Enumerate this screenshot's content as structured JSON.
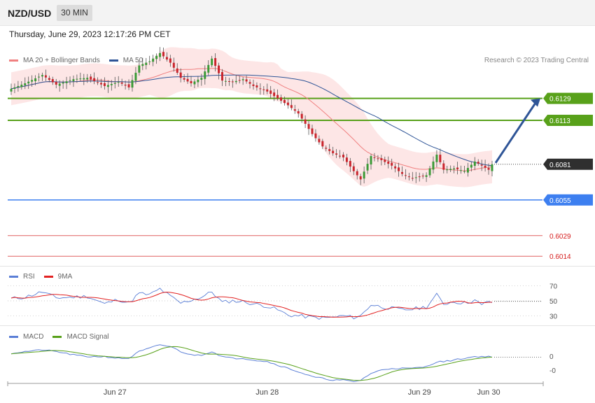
{
  "header": {
    "symbol": "NZD/USD",
    "timeframe": "30 MIN"
  },
  "datetime": "Thursday, June 29, 2023 12:17:26 PM CET",
  "copyright": "Research © 2023 Trading Central",
  "colors": {
    "up": "#3a9a36",
    "down": "#c9242c",
    "ma20": "#f08080",
    "band": "#fde2e2",
    "ma50": "#2f5597",
    "resistance": "#58a11a",
    "pivot": "#3d7ff0",
    "support": "#e06060",
    "arrow": "#2f5597",
    "rsi": "#5b7fd6",
    "rsi_ma": "#e22222",
    "macd": "#5b7fd6",
    "signal": "#58a11a"
  },
  "legends": {
    "price": [
      {
        "label": "MA 20 + Bollinger Bands",
        "color": "#f08080"
      },
      {
        "label": "MA 50",
        "color": "#2f5597"
      }
    ],
    "rsi": [
      {
        "label": "RSI",
        "color": "#5b7fd6"
      },
      {
        "label": "9MA",
        "color": "#e22222"
      }
    ],
    "macd": [
      {
        "label": "MACD",
        "color": "#5b7fd6"
      },
      {
        "label": "MACD Signal",
        "color": "#58a11a"
      }
    ]
  },
  "chart_data": [
    {
      "type": "candlestick",
      "name": "price",
      "ylim": [
        0.6008,
        0.6165
      ],
      "levels": [
        {
          "value": 0.6129,
          "label": "0.6129",
          "kind": "resistance"
        },
        {
          "value": 0.6113,
          "label": "0.6113",
          "kind": "resistance"
        },
        {
          "value": 0.6081,
          "label": "0.6081",
          "kind": "last"
        },
        {
          "value": 0.6055,
          "label": "0.6055",
          "kind": "pivot"
        },
        {
          "value": 0.6029,
          "label": "0.6029",
          "kind": "support"
        },
        {
          "value": 0.6014,
          "label": "0.6014",
          "kind": "support"
        }
      ],
      "x_ticks": [
        {
          "index": 30,
          "label": "Jun 27"
        },
        {
          "index": 74,
          "label": "Jun 28"
        },
        {
          "index": 118,
          "label": "Jun 29"
        },
        {
          "index": 138,
          "label": "Jun 30"
        }
      ],
      "arrow": {
        "from": [
          0.6081
        ],
        "to": [
          0.6129
        ]
      },
      "close_anchors": [
        [
          0,
          0.6136
        ],
        [
          4,
          0.614
        ],
        [
          9,
          0.6146
        ],
        [
          13,
          0.6139
        ],
        [
          18,
          0.6143
        ],
        [
          22,
          0.6144
        ],
        [
          27,
          0.6138
        ],
        [
          31,
          0.6141
        ],
        [
          34,
          0.6137
        ],
        [
          37,
          0.6153
        ],
        [
          40,
          0.6156
        ],
        [
          43,
          0.6162
        ],
        [
          46,
          0.6155
        ],
        [
          49,
          0.6144
        ],
        [
          52,
          0.614
        ],
        [
          55,
          0.6144
        ],
        [
          58,
          0.6158
        ],
        [
          61,
          0.6142
        ],
        [
          64,
          0.6141
        ],
        [
          67,
          0.6143
        ],
        [
          70,
          0.6138
        ],
        [
          74,
          0.6134
        ],
        [
          77,
          0.6129
        ],
        [
          80,
          0.6124
        ],
        [
          83,
          0.6118
        ],
        [
          87,
          0.6103
        ],
        [
          90,
          0.6094
        ],
        [
          93,
          0.6089
        ],
        [
          96,
          0.6086
        ],
        [
          99,
          0.6076
        ],
        [
          101,
          0.607
        ],
        [
          104,
          0.6087
        ],
        [
          107,
          0.6084
        ],
        [
          110,
          0.608
        ],
        [
          113,
          0.6074
        ],
        [
          116,
          0.6071
        ],
        [
          120,
          0.6073
        ],
        [
          123,
          0.6088
        ],
        [
          125,
          0.6077
        ],
        [
          128,
          0.6078
        ],
        [
          131,
          0.6076
        ],
        [
          134,
          0.6083
        ],
        [
          136,
          0.608
        ],
        [
          138,
          0.6077
        ],
        [
          139,
          0.6081
        ]
      ]
    },
    {
      "type": "line",
      "name": "RSI",
      "ylim": [
        22,
        78
      ],
      "gridlines": [
        70,
        50,
        30
      ],
      "y_ticks": [
        "70",
        "50",
        "30"
      ],
      "anchors": [
        [
          0,
          53
        ],
        [
          4,
          55
        ],
        [
          9,
          62
        ],
        [
          13,
          54
        ],
        [
          18,
          55
        ],
        [
          22,
          56
        ],
        [
          27,
          46
        ],
        [
          31,
          52
        ],
        [
          34,
          47
        ],
        [
          37,
          60
        ],
        [
          40,
          58
        ],
        [
          43,
          66
        ],
        [
          46,
          56
        ],
        [
          49,
          47
        ],
        [
          52,
          51
        ],
        [
          55,
          55
        ],
        [
          58,
          62
        ],
        [
          61,
          48
        ],
        [
          64,
          50
        ],
        [
          67,
          49
        ],
        [
          70,
          46
        ],
        [
          74,
          43
        ],
        [
          77,
          38
        ],
        [
          80,
          31
        ],
        [
          83,
          30
        ],
        [
          87,
          28
        ],
        [
          90,
          27
        ],
        [
          93,
          28
        ],
        [
          96,
          30
        ],
        [
          99,
          28
        ],
        [
          101,
          30
        ],
        [
          104,
          45
        ],
        [
          107,
          42
        ],
        [
          110,
          40
        ],
        [
          113,
          38
        ],
        [
          116,
          39
        ],
        [
          120,
          42
        ],
        [
          123,
          58
        ],
        [
          125,
          46
        ],
        [
          128,
          49
        ],
        [
          131,
          47
        ],
        [
          134,
          51
        ],
        [
          136,
          44
        ],
        [
          138,
          50
        ],
        [
          139,
          48
        ]
      ]
    },
    {
      "type": "line",
      "name": "MACD",
      "ylim": [
        -0.0017,
        0.0008
      ],
      "y_ticks": [
        "0",
        "-0"
      ],
      "anchors": [
        [
          0,
          0.0001
        ],
        [
          4,
          0.0002
        ],
        [
          9,
          0.0003
        ],
        [
          13,
          0.0002
        ],
        [
          18,
          0.0
        ],
        [
          22,
          -0.0001
        ],
        [
          27,
          -0.0001
        ],
        [
          31,
          -0.0002
        ],
        [
          34,
          -0.0002
        ],
        [
          37,
          0.0002
        ],
        [
          40,
          0.0004
        ],
        [
          43,
          0.0006
        ],
        [
          46,
          0.0005
        ],
        [
          49,
          0.0002
        ],
        [
          52,
          0.0
        ],
        [
          55,
          0.0
        ],
        [
          58,
          0.0002
        ],
        [
          61,
          -0.0001
        ],
        [
          64,
          -0.0002
        ],
        [
          67,
          -0.0002
        ],
        [
          70,
          -0.0003
        ],
        [
          74,
          -0.0004
        ],
        [
          77,
          -0.0006
        ],
        [
          80,
          -0.0008
        ],
        [
          83,
          -0.001
        ],
        [
          87,
          -0.0013
        ],
        [
          90,
          -0.0014
        ],
        [
          93,
          -0.0015
        ],
        [
          96,
          -0.0015
        ],
        [
          99,
          -0.0016
        ],
        [
          101,
          -0.0015
        ],
        [
          104,
          -0.0011
        ],
        [
          107,
          -0.0009
        ],
        [
          110,
          -0.0008
        ],
        [
          113,
          -0.0008
        ],
        [
          116,
          -0.0008
        ],
        [
          120,
          -0.0007
        ],
        [
          123,
          -0.0004
        ],
        [
          125,
          -0.0004
        ],
        [
          128,
          -0.0003
        ],
        [
          131,
          -0.0002
        ],
        [
          134,
          -0.0001
        ],
        [
          136,
          -0.0001
        ],
        [
          138,
          -0.0001
        ],
        [
          139,
          -0.0001
        ]
      ]
    }
  ]
}
